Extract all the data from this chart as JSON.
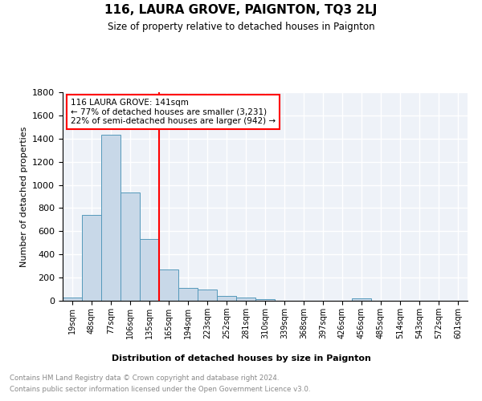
{
  "title": "116, LAURA GROVE, PAIGNTON, TQ3 2LJ",
  "subtitle": "Size of property relative to detached houses in Paignton",
  "xlabel": "Distribution of detached houses by size in Paignton",
  "ylabel": "Number of detached properties",
  "bar_values": [
    25,
    740,
    1430,
    935,
    530,
    270,
    110,
    95,
    45,
    25,
    15,
    0,
    0,
    0,
    0,
    20,
    0,
    0,
    0,
    0,
    0
  ],
  "bin_labels": [
    "19sqm",
    "48sqm",
    "77sqm",
    "106sqm",
    "135sqm",
    "165sqm",
    "194sqm",
    "223sqm",
    "252sqm",
    "281sqm",
    "310sqm",
    "339sqm",
    "368sqm",
    "397sqm",
    "426sqm",
    "456sqm",
    "485sqm",
    "514sqm",
    "543sqm",
    "572sqm",
    "601sqm"
  ],
  "bar_color": "#c8d8e8",
  "bar_edge_color": "#5599bb",
  "vline_x": 4.5,
  "vline_color": "red",
  "annotation_text": "116 LAURA GROVE: 141sqm\n← 77% of detached houses are smaller (3,231)\n22% of semi-detached houses are larger (942) →",
  "annotation_box_color": "white",
  "annotation_box_edge": "red",
  "ylim": [
    0,
    1800
  ],
  "yticks": [
    0,
    200,
    400,
    600,
    800,
    1000,
    1200,
    1400,
    1600,
    1800
  ],
  "footer_line1": "Contains HM Land Registry data © Crown copyright and database right 2024.",
  "footer_line2": "Contains public sector information licensed under the Open Government Licence v3.0.",
  "background_color": "#eef2f8",
  "grid_color": "white"
}
